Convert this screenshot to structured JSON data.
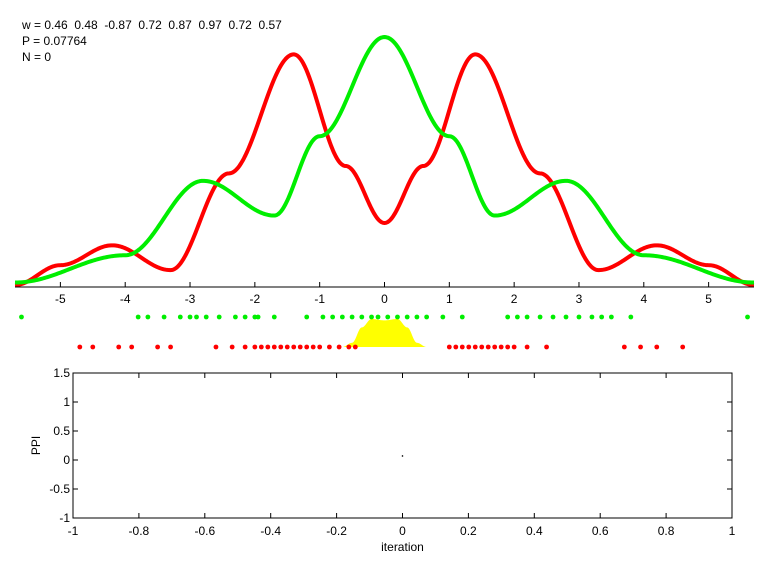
{
  "header": {
    "weights_line": "w = 0.46  0.48  -0.87  0.72  0.87  0.97  0.72  0.57",
    "p_line": "P = 0.07764",
    "n_line": "N = 0"
  },
  "chart_data": [
    {
      "type": "line",
      "xlim": [
        -5.7,
        5.7
      ],
      "xticks": [
        -5,
        -4,
        -3,
        -2,
        -1,
        0,
        1,
        2,
        3,
        4,
        5
      ],
      "xtick_labels": [
        "-5",
        "-4",
        "-3",
        "-2",
        "-1",
        "0",
        "1",
        "2",
        "3",
        "4",
        "5"
      ],
      "ylim": [
        0,
        1.0
      ],
      "series": [
        {
          "color": "#ff0000",
          "x": [
            -5.7,
            -5.0,
            -4.2,
            -3.3,
            -2.4,
            -1.4,
            -0.6,
            0.0,
            0.6,
            1.4,
            2.4,
            3.3,
            4.2,
            5.0,
            5.7
          ],
          "y": [
            0.0,
            0.08,
            0.16,
            0.06,
            0.45,
            0.93,
            0.48,
            0.25,
            0.48,
            0.93,
            0.45,
            0.06,
            0.16,
            0.08,
            0.0
          ]
        },
        {
          "color": "#00ee00",
          "x": [
            -5.7,
            -4.0,
            -2.8,
            -1.7,
            -1.0,
            0.0,
            1.0,
            1.7,
            2.8,
            4.0,
            5.7
          ],
          "y": [
            0.01,
            0.12,
            0.42,
            0.28,
            0.6,
            1.0,
            0.6,
            0.28,
            0.42,
            0.12,
            0.01
          ]
        }
      ],
      "samples": [
        {
          "color": "#00ee00",
          "x": [
            -5.6,
            -3.8,
            -3.65,
            -3.4,
            -3.15,
            -3.0,
            -2.9,
            -2.75,
            -2.55,
            -2.3,
            -2.15,
            -2.0,
            -1.95,
            -1.7,
            -1.2,
            -0.95,
            -0.8,
            -0.65,
            -0.5,
            -0.35,
            -0.2,
            -0.1,
            0.05,
            0.2,
            0.35,
            0.5,
            0.65,
            0.9,
            1.2,
            1.9,
            2.05,
            2.2,
            2.4,
            2.6,
            2.8,
            3.0,
            3.2,
            3.35,
            3.5,
            3.8,
            5.6
          ]
        },
        {
          "color": "#ff0000",
          "x": [
            -4.7,
            -4.5,
            -4.1,
            -3.9,
            -3.5,
            -3.3,
            -2.6,
            -2.35,
            -2.15,
            -2.0,
            -1.9,
            -1.8,
            -1.7,
            -1.6,
            -1.5,
            -1.4,
            -1.3,
            -1.2,
            -1.1,
            -1.0,
            -0.85,
            -0.7,
            -0.55,
            -0.45,
            1.0,
            1.1,
            1.2,
            1.3,
            1.4,
            1.5,
            1.6,
            1.7,
            1.8,
            1.9,
            2.0,
            2.2,
            2.5,
            3.7,
            3.95,
            4.2,
            4.6
          ]
        }
      ],
      "density": {
        "color": "#ffff00",
        "x": [
          -0.65,
          -0.5,
          -0.35,
          -0.2,
          0.0,
          0.2,
          0.35,
          0.5,
          0.65
        ],
        "y": [
          0.0,
          0.15,
          0.7,
          1.0,
          0.95,
          1.0,
          0.7,
          0.15,
          0.0
        ]
      }
    },
    {
      "type": "scatter",
      "xlabel": "iteration",
      "ylabel": "PPI",
      "xlim": [
        -1,
        1
      ],
      "ylim": [
        -1,
        1.5
      ],
      "xticks": [
        -1,
        -0.8,
        -0.6,
        -0.4,
        -0.2,
        0,
        0.2,
        0.4,
        0.6,
        0.8,
        1
      ],
      "xtick_labels": [
        "-1",
        "-0.8",
        "-0.6",
        "-0.4",
        "-0.2",
        "0",
        "0.2",
        "0.4",
        "0.6",
        "0.8",
        "1"
      ],
      "yticks": [
        -1,
        -0.5,
        0,
        0.5,
        1,
        1.5
      ],
      "ytick_labels": [
        "-1",
        "-0.5",
        "0",
        "0.5",
        "1",
        "1.5"
      ],
      "points": [
        {
          "x": 0,
          "y": 0.07
        }
      ]
    }
  ]
}
